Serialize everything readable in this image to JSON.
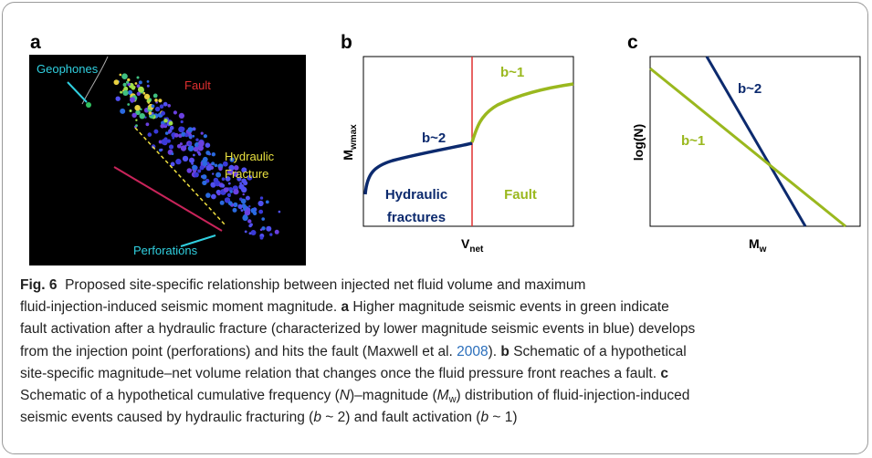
{
  "panels": {
    "a": {
      "label": "a",
      "annotations": {
        "geophones": "Geophones",
        "fault": "Fault",
        "hydraulic_fracture": [
          "Hydraulic",
          "Fracture"
        ],
        "perforations": "Perforations"
      }
    },
    "b": {
      "label": "b",
      "y_label": {
        "main": "M",
        "sub": "wmax"
      },
      "x_label": {
        "main": "V",
        "sub": "net"
      },
      "low_slope": "b~2",
      "high_slope": "b~1",
      "left_region": [
        "Hydraulic",
        "fractures"
      ],
      "right_region": "Fault"
    },
    "c": {
      "label": "c",
      "y_label": "log(N)",
      "x_label": {
        "main": "M",
        "sub": "w"
      },
      "steep_line": "b~2",
      "shallow_line": "b~1"
    }
  },
  "caption": {
    "lines": [
      [
        {
          "text": "Fig. 6",
          "style": "bold"
        },
        {
          "text": "  Proposed site-specific relationship between injected net fluid volume and maximum",
          "style": "plain"
        }
      ],
      [
        {
          "text": "fluid-injection-induced seismic moment magnitude. ",
          "style": "plain"
        },
        {
          "text": "a",
          "style": "bold"
        },
        {
          "text": " Higher magnitude seismic events in green indicate",
          "style": "plain"
        }
      ],
      [
        {
          "text": "fault activation after a hydraulic fracture (characterized by lower magnitude seismic events in blue) develops",
          "style": "plain"
        }
      ],
      [
        {
          "text": "from the injection point (perforations) and hits the fault (Maxwell et al. ",
          "style": "plain"
        },
        {
          "text": "2008",
          "style": "link"
        },
        {
          "text": "). ",
          "style": "plain"
        },
        {
          "text": "b",
          "style": "bold"
        },
        {
          "text": " Schematic of a hypothetical",
          "style": "plain"
        }
      ],
      [
        {
          "text": "site-specific magnitude–net volume relation that changes once the fluid pressure front reaches a fault. ",
          "style": "plain"
        },
        {
          "text": "c",
          "style": "bold"
        }
      ],
      [
        {
          "text": "Schematic of a hypothetical cumulative frequency (",
          "style": "plain"
        },
        {
          "text": "N",
          "style": "italic"
        },
        {
          "text": ")–magnitude (",
          "style": "plain"
        },
        {
          "text": "M",
          "style": "italic"
        },
        {
          "text": "w",
          "style": "sub"
        },
        {
          "text": ") distribution of fluid-injection-induced",
          "style": "plain"
        }
      ],
      [
        {
          "text": "seismic events caused by hydraulic fracturing (",
          "style": "plain"
        },
        {
          "text": "b",
          "style": "italic"
        },
        {
          "text": " ~ 2) and fault activation (",
          "style": "plain"
        },
        {
          "text": "b",
          "style": "italic"
        },
        {
          "text": " ~ 1)",
          "style": "plain"
        }
      ]
    ]
  }
}
